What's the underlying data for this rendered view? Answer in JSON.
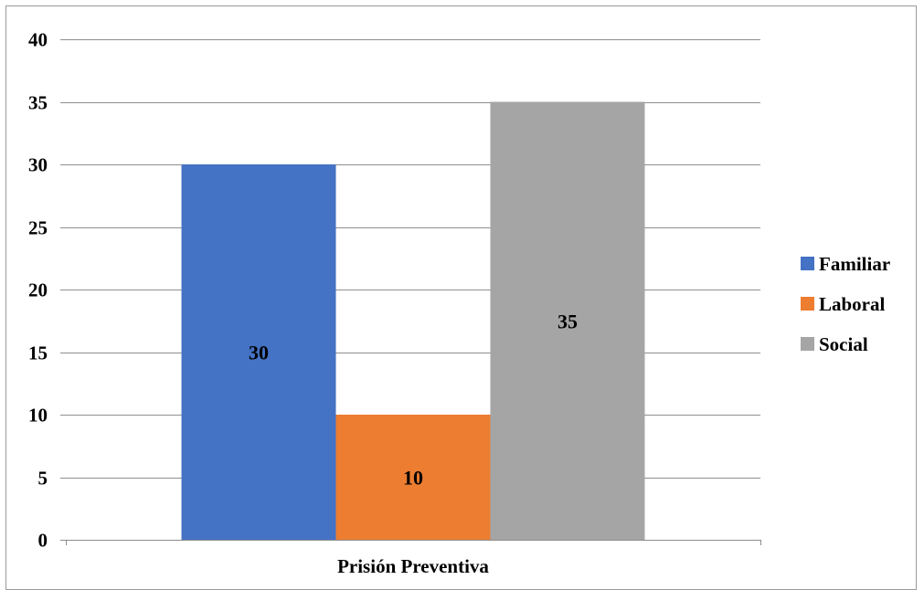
{
  "chart_data": {
    "type": "bar",
    "categories": [
      "Prisión Preventiva"
    ],
    "series": [
      {
        "name": "Familiar",
        "values": [
          30
        ],
        "color": "#4472C4"
      },
      {
        "name": "Laboral",
        "values": [
          10
        ],
        "color": "#ED7D31"
      },
      {
        "name": "Social",
        "values": [
          35
        ],
        "color": "#A5A5A5"
      }
    ],
    "ylim": [
      0,
      40
    ],
    "yticks": [
      0,
      5,
      10,
      15,
      20,
      25,
      30,
      35,
      40
    ],
    "grid": true,
    "legend": "right",
    "data_labels": true
  }
}
